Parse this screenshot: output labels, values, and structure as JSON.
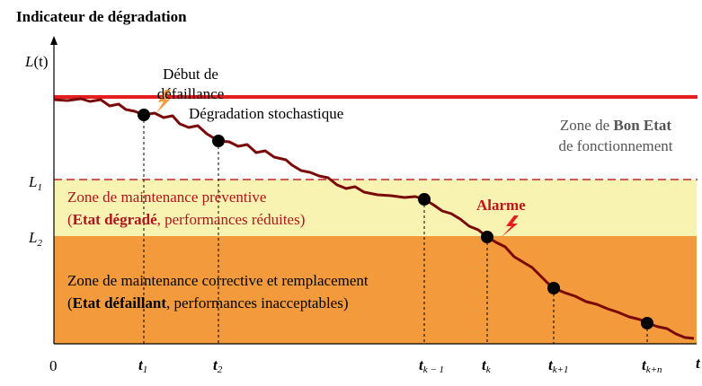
{
  "title": "Indicateur de dégradation",
  "y_axis": {
    "name": "L",
    "arg": "(t)"
  },
  "x_axis": {
    "origin": "0",
    "name": "t"
  },
  "thresholds": [
    {
      "name": "L",
      "sub": "1"
    },
    {
      "name": "L",
      "sub": "2"
    }
  ],
  "annotations": {
    "failure_start": [
      "Début de",
      "défaillance"
    ],
    "degradation": "Dégradation  stochastique",
    "alarm": "Alarme"
  },
  "zones": {
    "good": {
      "line1": [
        {
          "text": "Zone de "
        },
        {
          "text": "Bon Etat",
          "bold": true
        }
      ],
      "line2": "de fonctionnement"
    },
    "preventive": {
      "line1": "Zone de maintenance  préventive",
      "line2": [
        {
          "text": "("
        },
        {
          "text": "Etat dégradé",
          "bold": true
        },
        {
          "text": ", performances réduites)"
        }
      ]
    },
    "corrective": {
      "line1": "Zone de maintenance corrective  et remplacement",
      "line2": [
        {
          "text": "("
        },
        {
          "text": "Etat défaillant",
          "bold": true
        },
        {
          "text": ", performances inacceptables)"
        }
      ]
    }
  },
  "times": [
    {
      "name": "t",
      "sub": "1"
    },
    {
      "name": "t",
      "sub": "2"
    },
    {
      "name": "t",
      "sub": "k − 1"
    },
    {
      "name": "t",
      "sub": "k"
    },
    {
      "name": "t",
      "sub": "k+1"
    },
    {
      "name": "t",
      "sub": "k+n"
    }
  ]
}
